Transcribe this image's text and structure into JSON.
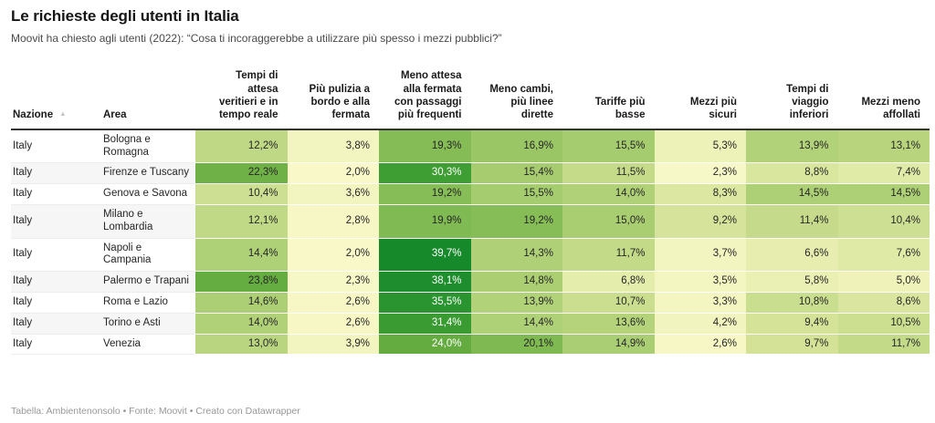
{
  "chart_data": {
    "type": "table",
    "title": "Le richieste degli utenti in Italia",
    "subtitle": "Moovit ha chiesto agli utenti (2022): “Cosa ti incoraggerebbe a utilizzare più spesso i mezzi pubblici?”",
    "footer": "Tabella: Ambientenonsolo • Fonte: Moovit • Creato con Datawrapper",
    "sort_icon": "▲",
    "value_suffix": "%",
    "decimal_separator": ",",
    "columns": [
      {
        "key": "nazione",
        "label": "Nazione",
        "sortable": true,
        "align": "left"
      },
      {
        "key": "area",
        "label": "Area",
        "sortable": false,
        "align": "left"
      },
      {
        "key": "tempi-attesa-reale",
        "label": "Tempi di attesa veritieri e in tempo reale",
        "sortable": false,
        "align": "right"
      },
      {
        "key": "pulizia",
        "label": "Più pulizia a bordo e alla fermata",
        "sortable": false,
        "align": "right"
      },
      {
        "key": "meno-attesa-fermata",
        "label": "Meno attesa alla fermata con passaggi più frequenti",
        "sortable": false,
        "align": "right"
      },
      {
        "key": "meno-cambi",
        "label": "Meno cambi, più linee dirette",
        "sortable": false,
        "align": "right"
      },
      {
        "key": "tariffe-basse",
        "label": "Tariffe più basse",
        "sortable": false,
        "align": "right"
      },
      {
        "key": "mezzi-sicuri",
        "label": "Mezzi più sicuri",
        "sortable": false,
        "align": "right"
      },
      {
        "key": "tempi-viaggio",
        "label": "Tempi di viaggio inferiori",
        "sortable": false,
        "align": "right"
      },
      {
        "key": "mezzi-affollati",
        "label": "Mezzi meno affollati",
        "sortable": false,
        "align": "right"
      }
    ],
    "rows": [
      {
        "nazione": "Italy",
        "area": "Bologna e Romagna",
        "values": [
          12.2,
          3.8,
          19.3,
          16.9,
          15.5,
          5.3,
          13.9,
          13.1
        ]
      },
      {
        "nazione": "Italy",
        "area": "Firenze e Tuscany",
        "values": [
          22.3,
          2.0,
          30.3,
          15.4,
          11.5,
          2.3,
          8.8,
          7.4
        ]
      },
      {
        "nazione": "Italy",
        "area": "Genova e Savona",
        "values": [
          10.4,
          3.6,
          19.2,
          15.5,
          14.0,
          8.3,
          14.5,
          14.5
        ]
      },
      {
        "nazione": "Italy",
        "area": "Milano e Lombardia",
        "values": [
          12.1,
          2.8,
          19.9,
          19.2,
          15.0,
          9.2,
          11.4,
          10.4
        ]
      },
      {
        "nazione": "Italy",
        "area": "Napoli e Campania",
        "values": [
          14.4,
          2.0,
          39.7,
          14.3,
          11.7,
          3.7,
          6.6,
          7.6
        ]
      },
      {
        "nazione": "Italy",
        "area": "Palermo e Trapani",
        "values": [
          23.8,
          2.3,
          38.1,
          14.8,
          6.8,
          3.5,
          5.8,
          5.0
        ]
      },
      {
        "nazione": "Italy",
        "area": "Roma e Lazio",
        "values": [
          14.6,
          2.6,
          35.5,
          13.9,
          10.7,
          3.3,
          10.8,
          8.6
        ]
      },
      {
        "nazione": "Italy",
        "area": "Torino e Asti",
        "values": [
          14.0,
          2.6,
          31.4,
          14.4,
          13.6,
          4.2,
          9.4,
          10.5
        ]
      },
      {
        "nazione": "Italy",
        "area": "Venezia",
        "values": [
          13.0,
          3.9,
          24.0,
          20.1,
          14.9,
          2.6,
          9.7,
          11.7
        ]
      }
    ],
    "color_scale": {
      "type": "linear",
      "stops": [
        [
          2,
          "#f8f8c8"
        ],
        [
          5,
          "#eff3ba"
        ],
        [
          9,
          "#d8e59c"
        ],
        [
          13,
          "#b9d57f"
        ],
        [
          17,
          "#99c665"
        ],
        [
          21,
          "#77b54b"
        ],
        [
          25,
          "#5ea93c"
        ],
        [
          31,
          "#3b9c32"
        ],
        [
          36,
          "#289330"
        ],
        [
          40,
          "#15882a"
        ]
      ],
      "white_text_threshold": 24,
      "dark_text_color": "#262626",
      "white_text_color": "#ffffff"
    }
  }
}
